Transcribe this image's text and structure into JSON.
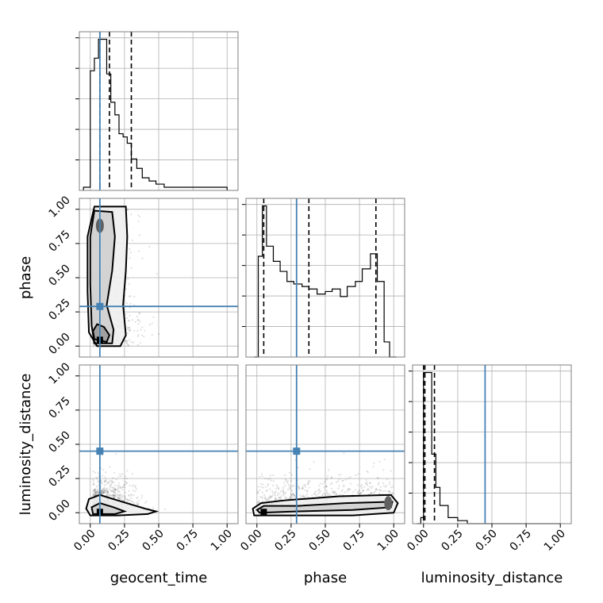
{
  "chart_data": {
    "type": "corner",
    "parameters": [
      "geocent_time",
      "phase",
      "luminosity_distance"
    ],
    "axis_labels": {
      "x": [
        "geocent_time",
        "phase",
        "luminosity_distance"
      ],
      "y": [
        "",
        "phase",
        "luminosity_distance"
      ]
    },
    "tick_labels": [
      "0.00",
      "0.25",
      "0.50",
      "0.75",
      "1.00"
    ],
    "axis_range": [
      [
        -0.08,
        1.08
      ],
      [
        -0.08,
        1.08
      ],
      [
        -0.08,
        1.08
      ]
    ],
    "truths": [
      0.07,
      0.29,
      0.45
    ],
    "quantiles": [
      [
        0.07,
        0.14,
        0.3
      ],
      [
        0.05,
        0.38,
        0.87
      ],
      [
        0.0,
        0.01,
        0.08
      ]
    ],
    "histograms": [
      {
        "bin_edges": [
          -0.05,
          -0.02,
          0.0,
          0.03,
          0.06,
          0.09,
          0.12,
          0.15,
          0.18,
          0.21,
          0.24,
          0.27,
          0.3,
          0.34,
          0.38,
          0.43,
          0.48,
          0.54,
          0.6,
          0.66,
          0.72,
          0.8,
          0.9,
          1.0
        ],
        "counts": [
          1,
          1,
          38,
          42,
          48,
          48,
          37,
          28,
          24,
          18,
          17,
          15,
          10,
          7,
          4,
          3,
          2,
          1,
          1,
          1,
          1,
          1,
          1
        ]
      },
      {
        "bin_edges": [
          -0.02,
          0.01,
          0.04,
          0.07,
          0.12,
          0.17,
          0.22,
          0.27,
          0.33,
          0.38,
          0.44,
          0.5,
          0.55,
          0.61,
          0.66,
          0.72,
          0.77,
          0.83,
          0.88,
          0.93,
          0.97,
          1.02
        ],
        "counts": [
          0,
          40,
          60,
          44,
          38,
          34,
          30,
          29,
          28,
          27,
          25,
          26,
          27,
          24,
          28,
          30,
          35,
          41,
          30,
          6,
          0
        ]
      },
      {
        "bin_edges": [
          -0.05,
          -0.02,
          0.0,
          0.03,
          0.06,
          0.09,
          0.12,
          0.18,
          0.25,
          0.32,
          0.45,
          1.0
        ],
        "counts": [
          0,
          2,
          50,
          50,
          23,
          12,
          6,
          2,
          1,
          0,
          0
        ]
      }
    ],
    "pairs": [
      {
        "row": 1,
        "col": 0,
        "density_peak": [
          0.07,
          0.04
        ],
        "secondary_peak": [
          0.07,
          0.88
        ],
        "contours": [
          [
            [
              0.05,
              0.0
            ],
            [
              0.22,
              0.0
            ],
            [
              0.26,
              0.08
            ],
            [
              0.24,
              0.3
            ],
            [
              0.26,
              0.55
            ],
            [
              0.27,
              0.8
            ],
            [
              0.26,
              1.02
            ],
            [
              0.03,
              1.02
            ],
            [
              -0.02,
              0.8
            ],
            [
              -0.02,
              0.4
            ],
            [
              -0.01,
              0.1
            ]
          ],
          [
            [
              0.03,
              0.02
            ],
            [
              0.16,
              0.02
            ],
            [
              0.17,
              0.12
            ],
            [
              0.12,
              0.3
            ],
            [
              0.16,
              0.55
            ],
            [
              0.18,
              0.8
            ],
            [
              0.16,
              0.98
            ],
            [
              0.03,
              0.99
            ],
            [
              0.0,
              0.8
            ],
            [
              0.0,
              0.45
            ],
            [
              0.01,
              0.15
            ]
          ],
          [
            [
              0.03,
              0.05
            ],
            [
              0.12,
              0.03
            ],
            [
              0.14,
              0.08
            ],
            [
              0.1,
              0.14
            ],
            [
              0.05,
              0.16
            ],
            [
              0.02,
              0.11
            ]
          ]
        ]
      },
      {
        "row": 2,
        "col": 0,
        "density_peak": [
          0.07,
          0.0
        ],
        "secondary_peak": null,
        "contours": [
          [
            [
              0.0,
              -0.02
            ],
            [
              0.2,
              -0.02
            ],
            [
              0.42,
              -0.01
            ],
            [
              0.48,
              0.01
            ],
            [
              0.4,
              0.03
            ],
            [
              0.2,
              0.09
            ],
            [
              0.07,
              0.13
            ],
            [
              -0.01,
              0.1
            ],
            [
              -0.03,
              0.03
            ]
          ],
          [
            [
              0.02,
              -0.01
            ],
            [
              0.18,
              -0.01
            ],
            [
              0.25,
              0.01
            ],
            [
              0.17,
              0.04
            ],
            [
              0.07,
              0.07
            ],
            [
              0.01,
              0.04
            ]
          ]
        ]
      },
      {
        "row": 2,
        "col": 1,
        "density_peak": [
          0.05,
          0.0
        ],
        "secondary_peak": [
          0.96,
          0.07
        ],
        "contours": [
          [
            [
              -0.02,
              -0.02
            ],
            [
              0.3,
              -0.02
            ],
            [
              0.7,
              -0.02
            ],
            [
              1.0,
              0.0
            ],
            [
              1.03,
              0.07
            ],
            [
              0.98,
              0.13
            ],
            [
              0.6,
              0.12
            ],
            [
              0.2,
              0.09
            ],
            [
              0.03,
              0.07
            ],
            [
              -0.03,
              0.03
            ]
          ],
          [
            [
              0.02,
              0.0
            ],
            [
              0.3,
              0.01
            ],
            [
              0.7,
              0.02
            ],
            [
              0.98,
              0.04
            ],
            [
              0.99,
              0.08
            ],
            [
              0.65,
              0.07
            ],
            [
              0.3,
              0.05
            ],
            [
              0.05,
              0.05
            ],
            [
              0.0,
              0.02
            ]
          ]
        ]
      }
    ]
  }
}
